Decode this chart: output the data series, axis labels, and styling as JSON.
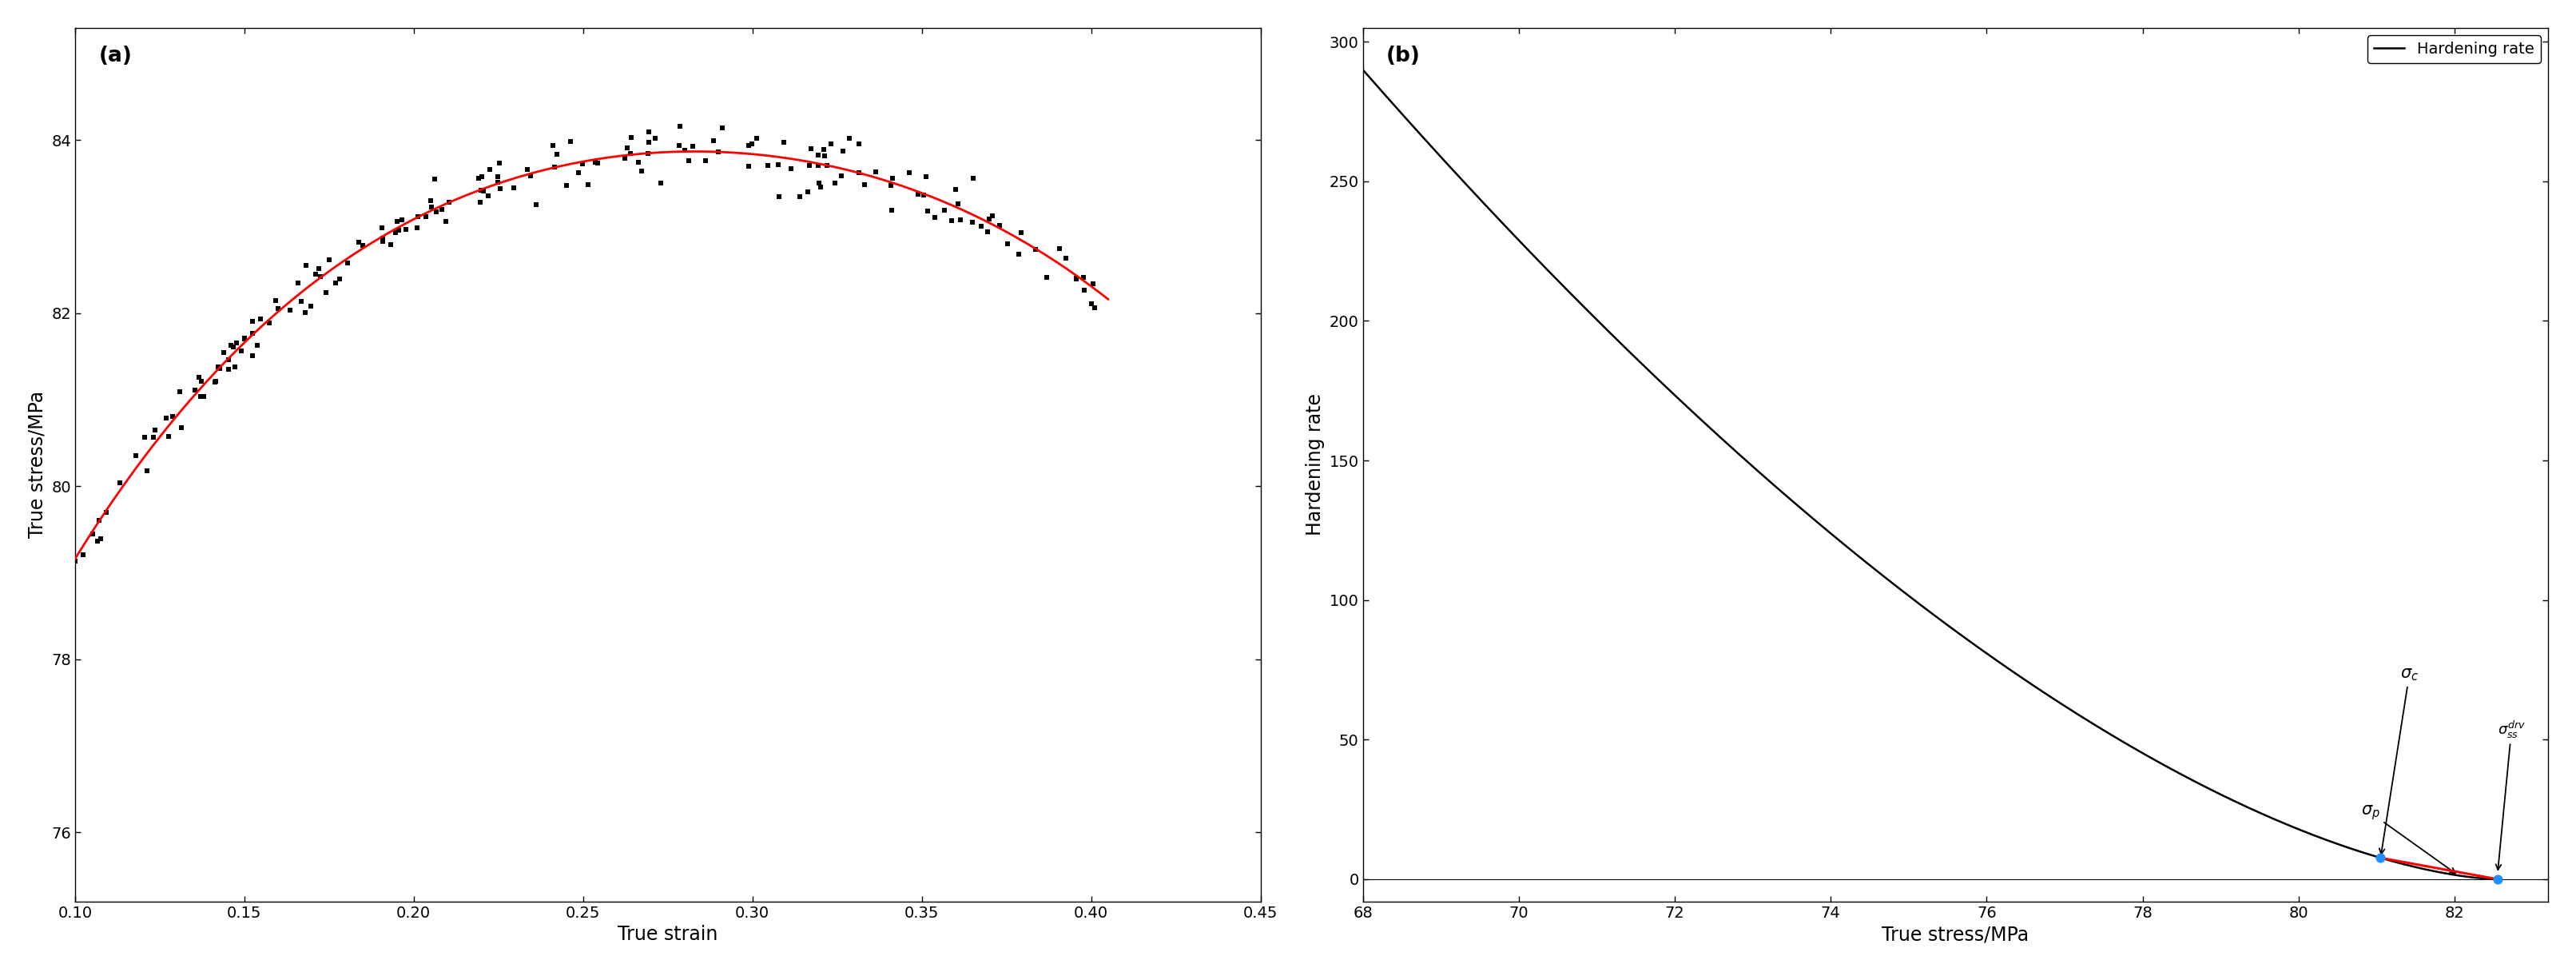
{
  "panel_a_label": "(a)",
  "panel_b_label": "(b)",
  "a_xlabel": "True strain",
  "a_ylabel": "True stress/MPa",
  "a_xlim": [
    0.1,
    0.45
  ],
  "a_ylim": [
    75.2,
    85.3
  ],
  "a_xticks": [
    0.1,
    0.15,
    0.2,
    0.25,
    0.3,
    0.35,
    0.4,
    0.45
  ],
  "a_yticks": [
    76,
    78,
    80,
    82,
    84
  ],
  "b_xlabel": "True stress/MPa",
  "b_ylabel": "Hardening rate",
  "b_xlim": [
    68,
    83.2
  ],
  "b_ylim": [
    -8,
    305
  ],
  "b_xticks": [
    68,
    70,
    72,
    74,
    76,
    78,
    80,
    82
  ],
  "b_yticks": [
    0,
    50,
    100,
    150,
    200,
    250,
    300
  ],
  "sigma_c": 81.05,
  "sigma_p": 82.05,
  "sigma_ss_drv": 82.55,
  "red_line_color": "#FF0000",
  "blue_dot_color": "#1E90FF",
  "scatter_color": "#000000",
  "fit_line_color": "#FF0000",
  "hardening_line_color": "#000000"
}
